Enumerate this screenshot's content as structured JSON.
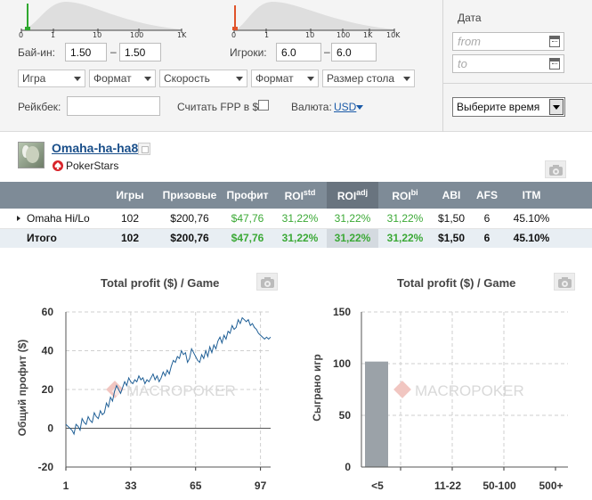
{
  "filters": {
    "buyin": {
      "label": "Бай-ин:",
      "from": "1.50",
      "to": "1.50",
      "ticks": [
        "0",
        "1",
        "10",
        "100",
        "1K"
      ]
    },
    "players": {
      "label": "Игроки:",
      "from": "6.0",
      "to": "6.0",
      "ticks": [
        "0",
        "1",
        "10",
        "100",
        "1K",
        "10K"
      ]
    },
    "dropdowns": [
      "Игра",
      "Формат",
      "Скорость",
      "Формат",
      "Размер стола"
    ],
    "rakeback": {
      "label": "Рейкбек:",
      "value": ""
    },
    "fpp": {
      "label": "Считать FPP в $",
      "checked": false
    },
    "currency": {
      "label": "Валюта:",
      "value": "USD"
    },
    "date": {
      "label": "Дата",
      "from_placeholder": "from",
      "to_placeholder": "to"
    },
    "time_select": "Выберите время",
    "colors": {
      "buyin_marker": "#2fa82f",
      "players_marker": "#e0532a"
    }
  },
  "player": {
    "name": "Omaha-ha-ha8",
    "room": "PokerStars",
    "room_icon": "pokerstars-spade-icon"
  },
  "table": {
    "headers": {
      "games": "Игры",
      "prizes": "Призовые",
      "profit": "Профит",
      "roi": "ROI",
      "roi_sup": "std",
      "roi_adj": "ROI",
      "roi_adj_sup": "adj",
      "roi_bi": "ROI",
      "roi_bi_sup": "bi",
      "abi": "ABI",
      "afs": "AFS",
      "itm": "ITM"
    },
    "rows": [
      {
        "name": "Omaha Hi/Lo",
        "games": "102",
        "prizes": "$200,76",
        "profit": "$47,76",
        "roi": "31,22%",
        "roi_adj": "31,22%",
        "roi_bi": "31,22%",
        "abi": "$1,50",
        "afs": "6",
        "itm": "45.10%"
      }
    ],
    "total": {
      "name": "Итого",
      "games": "102",
      "prizes": "$200,76",
      "profit": "$47,76",
      "roi": "31,22%",
      "roi_adj": "31,22%",
      "roi_bi": "31,22%",
      "abi": "$1,50",
      "afs": "6",
      "itm": "45.10%"
    }
  },
  "watermark": "MACROPOKER",
  "chart_data": [
    {
      "type": "line",
      "title": "Total profit ($) / Game",
      "ylabel": "Общий профит ($)",
      "xlabel": "",
      "ylim": [
        -20,
        60
      ],
      "yticks": [
        -20,
        0,
        20,
        40,
        60
      ],
      "xlim": [
        1,
        102
      ],
      "xticks": [
        1,
        33,
        65,
        97
      ],
      "grid": true,
      "series": [
        {
          "color": "#1f5f96",
          "x": [
            1,
            2,
            3,
            4,
            5,
            6,
            7,
            8,
            9,
            10,
            11,
            12,
            13,
            14,
            15,
            16,
            17,
            18,
            19,
            20,
            21,
            22,
            23,
            24,
            25,
            26,
            27,
            28,
            29,
            30,
            31,
            32,
            33,
            34,
            35,
            36,
            37,
            38,
            39,
            40,
            41,
            42,
            43,
            44,
            45,
            46,
            47,
            48,
            49,
            50,
            51,
            52,
            53,
            54,
            55,
            56,
            57,
            58,
            59,
            60,
            61,
            62,
            63,
            64,
            65,
            66,
            67,
            68,
            69,
            70,
            71,
            72,
            73,
            74,
            75,
            76,
            77,
            78,
            79,
            80,
            81,
            82,
            83,
            84,
            85,
            86,
            87,
            88,
            89,
            90,
            91,
            92,
            93,
            94,
            95,
            96,
            97,
            98,
            99,
            100,
            101,
            102
          ],
          "y": [
            2,
            1,
            0,
            -1,
            -3,
            2,
            1,
            -1,
            5,
            3,
            2,
            6,
            4,
            3,
            8,
            6,
            5,
            9,
            7,
            8,
            13,
            11,
            16,
            14,
            19,
            22,
            20,
            18,
            21,
            24,
            22,
            26,
            24,
            23,
            25,
            24,
            27,
            25,
            26,
            23,
            25,
            24,
            26,
            28,
            25,
            27,
            24,
            26,
            29,
            27,
            30,
            28,
            32,
            35,
            34,
            37,
            36,
            40,
            38,
            39,
            34,
            36,
            41,
            39,
            37,
            35,
            34,
            38,
            36,
            40,
            37,
            42,
            39,
            43,
            41,
            45,
            47,
            44,
            48,
            46,
            50,
            49,
            53,
            51,
            52,
            56,
            54,
            57,
            56,
            55,
            56,
            53,
            54,
            52,
            51,
            49,
            48,
            47,
            46,
            47,
            46,
            47
          ]
        }
      ]
    },
    {
      "type": "bar",
      "title": "Total profit ($) / Game",
      "ylabel": "Сыграно игр",
      "xlabel": "",
      "categories": [
        "<5",
        "11-22",
        "50-100",
        "500+"
      ],
      "values": [
        102,
        0,
        0,
        0
      ],
      "ylim": [
        0,
        150
      ],
      "yticks": [
        0,
        50,
        100,
        150
      ],
      "grid": true,
      "color": "#9ba2a8"
    }
  ]
}
